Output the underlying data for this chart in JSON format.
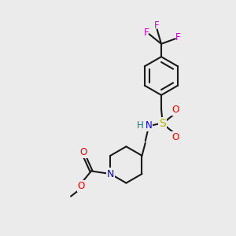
{
  "bg_color": "#ebebeb",
  "bond_color": "#1a1a1a",
  "atom_colors": {
    "N": "#0000ff",
    "O": "#ff0000",
    "S": "#b8b800",
    "F": "#cc00cc",
    "H": "#008080",
    "C": "#1a1a1a"
  },
  "lw": 1.5,
  "fs": 8.5
}
